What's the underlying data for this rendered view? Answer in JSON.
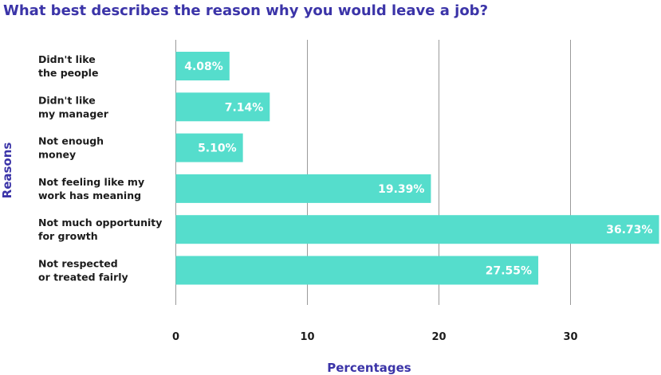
{
  "chart_data": {
    "type": "bar",
    "orientation": "horizontal",
    "title": "What best describes the reason why you would leave a job?",
    "xlabel": "Percentages",
    "ylabel": "Reasons",
    "categories": [
      [
        "Didn't like",
        "the people"
      ],
      [
        "Didn't like",
        "my manager"
      ],
      [
        "Not enough",
        "money"
      ],
      [
        "Not feeling like my",
        "work has meaning"
      ],
      [
        "Not much opportunity",
        "for growth"
      ],
      [
        "Not respected",
        "or treated fairly"
      ]
    ],
    "values": [
      4.08,
      7.14,
      5.1,
      19.39,
      36.73,
      27.55
    ],
    "value_labels": [
      "4.08%",
      "7.14%",
      "5.10%",
      "19.39%",
      "36.73%",
      "27.55%"
    ],
    "xticks": [
      0,
      10,
      20,
      30
    ],
    "xlim": [
      0,
      36.73
    ],
    "grid": "vertical",
    "legend": "none",
    "colors": {
      "bar": "#55ddcc",
      "title": "#3b34a8",
      "grid": "#9a9a9a",
      "value_text": "#ffffff"
    }
  }
}
